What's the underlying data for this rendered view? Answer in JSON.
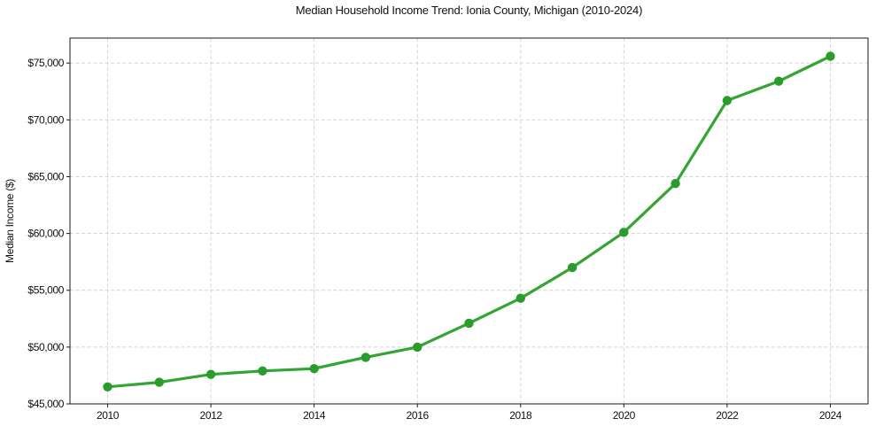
{
  "chart_data": {
    "type": "line",
    "title": "Median Household Income Trend: Ionia County, Michigan (2010-2024)",
    "xlabel": "",
    "ylabel": "Median Income ($)",
    "x": [
      2010,
      2011,
      2012,
      2013,
      2014,
      2015,
      2016,
      2017,
      2018,
      2019,
      2020,
      2021,
      2022,
      2023,
      2024
    ],
    "y": [
      46500,
      46900,
      47600,
      47900,
      48100,
      49100,
      50000,
      52100,
      54300,
      57000,
      60100,
      64400,
      71700,
      73400,
      75600
    ],
    "xlim": [
      2009.27,
      2024.73
    ],
    "ylim": [
      45000,
      77200
    ],
    "x_ticks": [
      2010,
      2012,
      2014,
      2016,
      2018,
      2020,
      2022,
      2024
    ],
    "x_tick_labels": [
      "2010",
      "2012",
      "2014",
      "2016",
      "2018",
      "2020",
      "2022",
      "2024"
    ],
    "y_ticks": [
      45000,
      50000,
      55000,
      60000,
      65000,
      70000,
      75000
    ],
    "y_tick_labels": [
      "$45,000",
      "$50,000",
      "$55,000",
      "$60,000",
      "$65,000",
      "$70,000",
      "$75,000"
    ],
    "grid": true,
    "legend": false,
    "line_color": "#33a532",
    "marker_color": "#2a9c2b",
    "grid_color": "#d1d1d1",
    "spine_color": "#1a1a1a"
  }
}
